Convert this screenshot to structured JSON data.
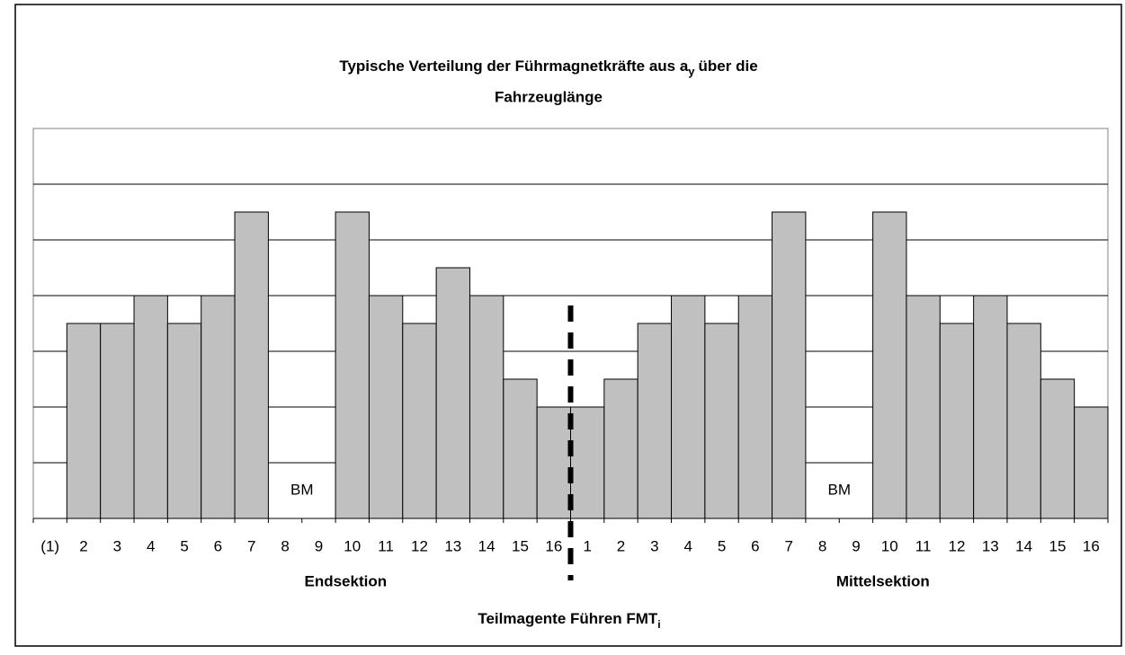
{
  "chart_data": {
    "type": "bar",
    "title": {
      "line1": "Typische Verteilung der Führmagnetkräfte aus a",
      "line1_sub": "y",
      "line1_rest": "über die",
      "line2": "Fahrzeuglänge"
    },
    "x_label": {
      "text": "Teilmagente Führen FMT",
      "sub": "i"
    },
    "sections": [
      "Endsektion",
      "Mittelsektion"
    ],
    "annotations": [
      "BM",
      "BM"
    ],
    "categories": [
      "(1)",
      "2",
      "3",
      "4",
      "5",
      "6",
      "7",
      "8",
      "9",
      "10",
      "11",
      "12",
      "13",
      "14",
      "15",
      "16",
      "1",
      "2",
      "3",
      "4",
      "5",
      "6",
      "7",
      "8",
      "9",
      "10",
      "11",
      "12",
      "13",
      "14",
      "15",
      "16"
    ],
    "values": [
      null,
      3.5,
      3.5,
      4,
      3.5,
      4,
      5.5,
      null,
      null,
      5.5,
      4,
      3.5,
      4.5,
      4,
      2.5,
      2,
      2,
      2.5,
      3.5,
      4,
      3.5,
      4,
      5.5,
      null,
      null,
      5.5,
      4,
      3.5,
      4,
      3.5,
      2.5,
      2
    ],
    "color": "#c0c0c0",
    "ylim": [
      0,
      7
    ],
    "yticks": [
      0,
      1,
      2,
      3,
      4,
      5,
      6,
      7
    ],
    "grid": true
  }
}
